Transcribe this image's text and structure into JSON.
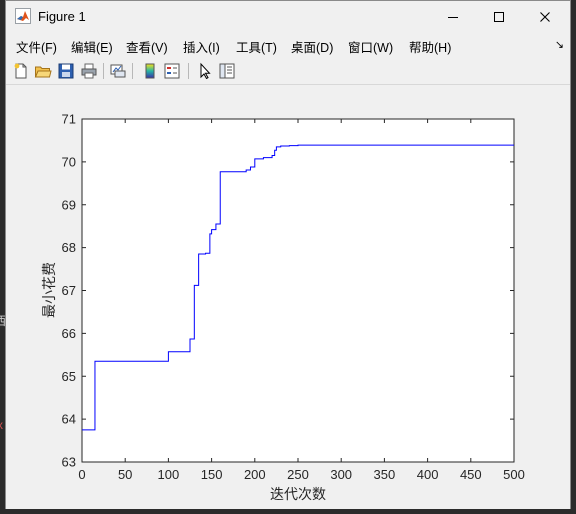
{
  "window": {
    "title": "Figure 1",
    "buttons": {
      "minimize": "minimize-icon",
      "maximize": "maximize-icon",
      "close": "close-icon"
    }
  },
  "menu": {
    "items": [
      {
        "label": "文件(F)"
      },
      {
        "label": "编辑(E)"
      },
      {
        "label": "查看(V)"
      },
      {
        "label": "插入(I)"
      },
      {
        "label": "工具(T)"
      },
      {
        "label": "桌面(D)"
      },
      {
        "label": "窗口(W)"
      },
      {
        "label": "帮助(H)"
      }
    ],
    "overflow_glyph": "↘"
  },
  "toolbar": {
    "icons": [
      "new-figure-icon",
      "open-file-icon",
      "save-icon",
      "print-icon",
      "link-plot-icon",
      "insert-colorbar-icon",
      "insert-legend-icon",
      "pointer-icon",
      "property-editor-icon"
    ]
  },
  "chart_data": {
    "type": "line",
    "title": "",
    "xlabel": "迭代次数",
    "ylabel": "最小花费",
    "xlim": [
      0,
      500
    ],
    "ylim": [
      63,
      71
    ],
    "xticks": [
      "0",
      "50",
      "100",
      "150",
      "200",
      "250",
      "300",
      "350",
      "400",
      "450",
      "500"
    ],
    "yticks": [
      "63",
      "64",
      "65",
      "66",
      "67",
      "68",
      "69",
      "70",
      "71"
    ],
    "grid": false,
    "color": "#0000ff",
    "series": [
      {
        "step": true,
        "x": [
          0,
          15,
          100,
          125,
          130,
          135,
          143,
          148,
          150,
          155,
          160,
          190,
          195,
          200,
          210,
          220,
          223,
          225,
          230,
          240,
          250,
          500
        ],
        "y": [
          63.75,
          65.35,
          65.57,
          65.87,
          67.12,
          67.85,
          67.87,
          68.32,
          68.42,
          68.55,
          69.77,
          69.81,
          69.88,
          70.07,
          70.1,
          70.15,
          70.27,
          70.35,
          70.37,
          70.38,
          70.39,
          70.39
        ]
      }
    ]
  },
  "desktop_edge": {
    "glyph_top": "西",
    "glyph_bottom": "x"
  }
}
